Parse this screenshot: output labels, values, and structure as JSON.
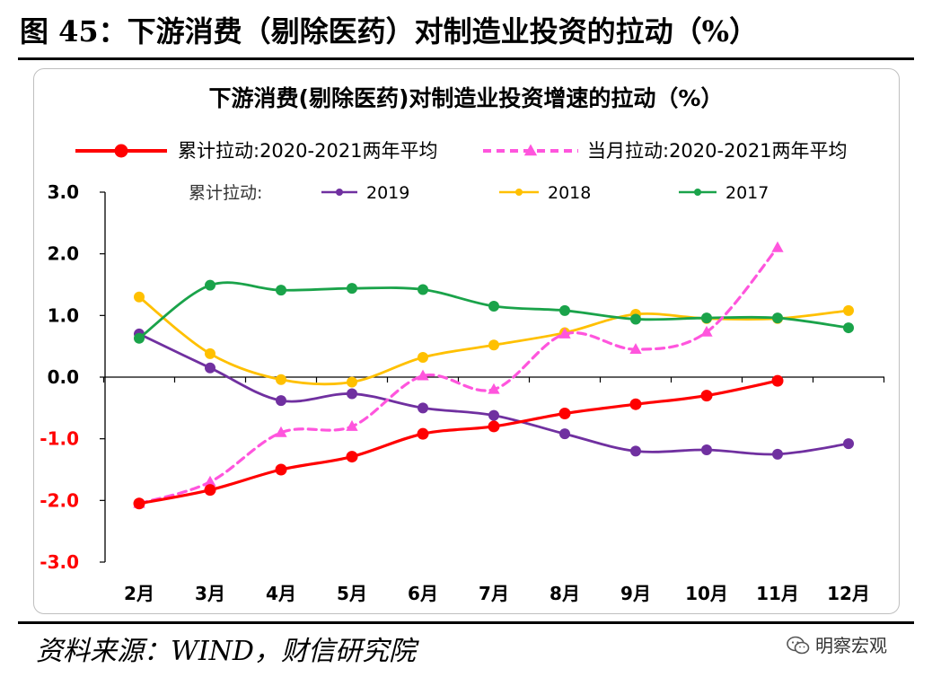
{
  "figure": {
    "title": "图 45：下游消费（剔除医药）对制造业投资的拉动（%）",
    "source": "资料来源：WIND，财信研究院",
    "watermark": "明察宏观",
    "watermark_icon": "wechat-icon"
  },
  "chart_data": {
    "type": "line",
    "title": "下游消费(剔除医药)对制造业投资增速的拉动（%）",
    "xlabel": "",
    "ylabel": "",
    "ylim": [
      -3.0,
      3.0
    ],
    "yticks": [
      "3.0",
      "2.0",
      "1.0",
      "0.0",
      "-1.0",
      "-2.0",
      "-3.0"
    ],
    "ytick_values": [
      3,
      2,
      1,
      0,
      -1,
      -2,
      -3
    ],
    "categories": [
      "2月",
      "3月",
      "4月",
      "5月",
      "6月",
      "7月",
      "8月",
      "9月",
      "10月",
      "11月",
      "12月"
    ],
    "grid": false,
    "legend_prefix": "累计拉动:",
    "series": [
      {
        "name": "累计拉动:2020-2021两年平均",
        "color": "#ff0000",
        "style": "solid",
        "marker": "circle",
        "values": [
          -2.05,
          -1.83,
          -1.5,
          -1.29,
          -0.92,
          -0.8,
          -0.59,
          -0.44,
          -0.3,
          -0.06,
          null
        ]
      },
      {
        "name": "当月拉动:2020-2021两年平均",
        "color": "#ff55dd",
        "style": "dashed",
        "marker": "triangle",
        "values": [
          -2.05,
          -1.7,
          -0.9,
          -0.8,
          0.02,
          -0.2,
          0.7,
          0.45,
          0.73,
          2.1,
          null
        ]
      },
      {
        "name": "2019",
        "color": "#7030a0",
        "style": "solid",
        "marker": "circle",
        "values": [
          0.7,
          0.15,
          -0.38,
          -0.27,
          -0.5,
          -0.62,
          -0.92,
          -1.2,
          -1.18,
          -1.25,
          -1.08
        ]
      },
      {
        "name": "2018",
        "color": "#ffc000",
        "style": "solid",
        "marker": "circle",
        "values": [
          1.3,
          0.38,
          -0.04,
          -0.08,
          0.32,
          0.52,
          0.72,
          1.02,
          0.95,
          0.95,
          1.08
        ]
      },
      {
        "name": "2017",
        "color": "#1aa34a",
        "style": "solid",
        "marker": "circle",
        "values": [
          0.63,
          1.49,
          1.41,
          1.44,
          1.42,
          1.15,
          1.08,
          0.94,
          0.96,
          0.96,
          0.8
        ]
      }
    ]
  }
}
